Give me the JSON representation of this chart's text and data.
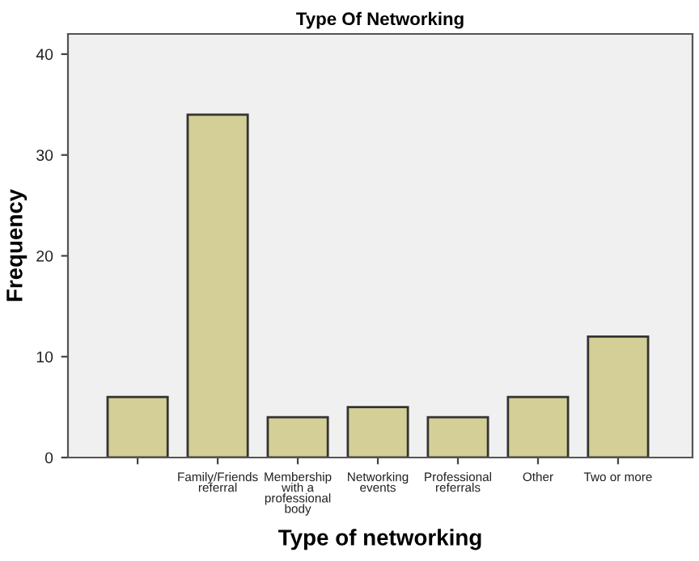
{
  "chart_data": {
    "type": "bar",
    "title": "Type Of Networking",
    "xlabel": "Type of networking",
    "ylabel": "Frequency",
    "categories": [
      null,
      "Family/Friends\nreferral",
      "Membership\nwith a\nprofessional\nbody",
      "Networking\nevents",
      "Professional\nreferrals",
      "Other",
      "Two or more"
    ],
    "values": [
      6,
      34,
      4,
      5,
      4,
      6,
      12
    ],
    "color": "#d4cf96",
    "ylim": [
      0,
      42
    ],
    "yticks": [
      0,
      10,
      20,
      30,
      40
    ],
    "grid": false,
    "legend": false
  }
}
